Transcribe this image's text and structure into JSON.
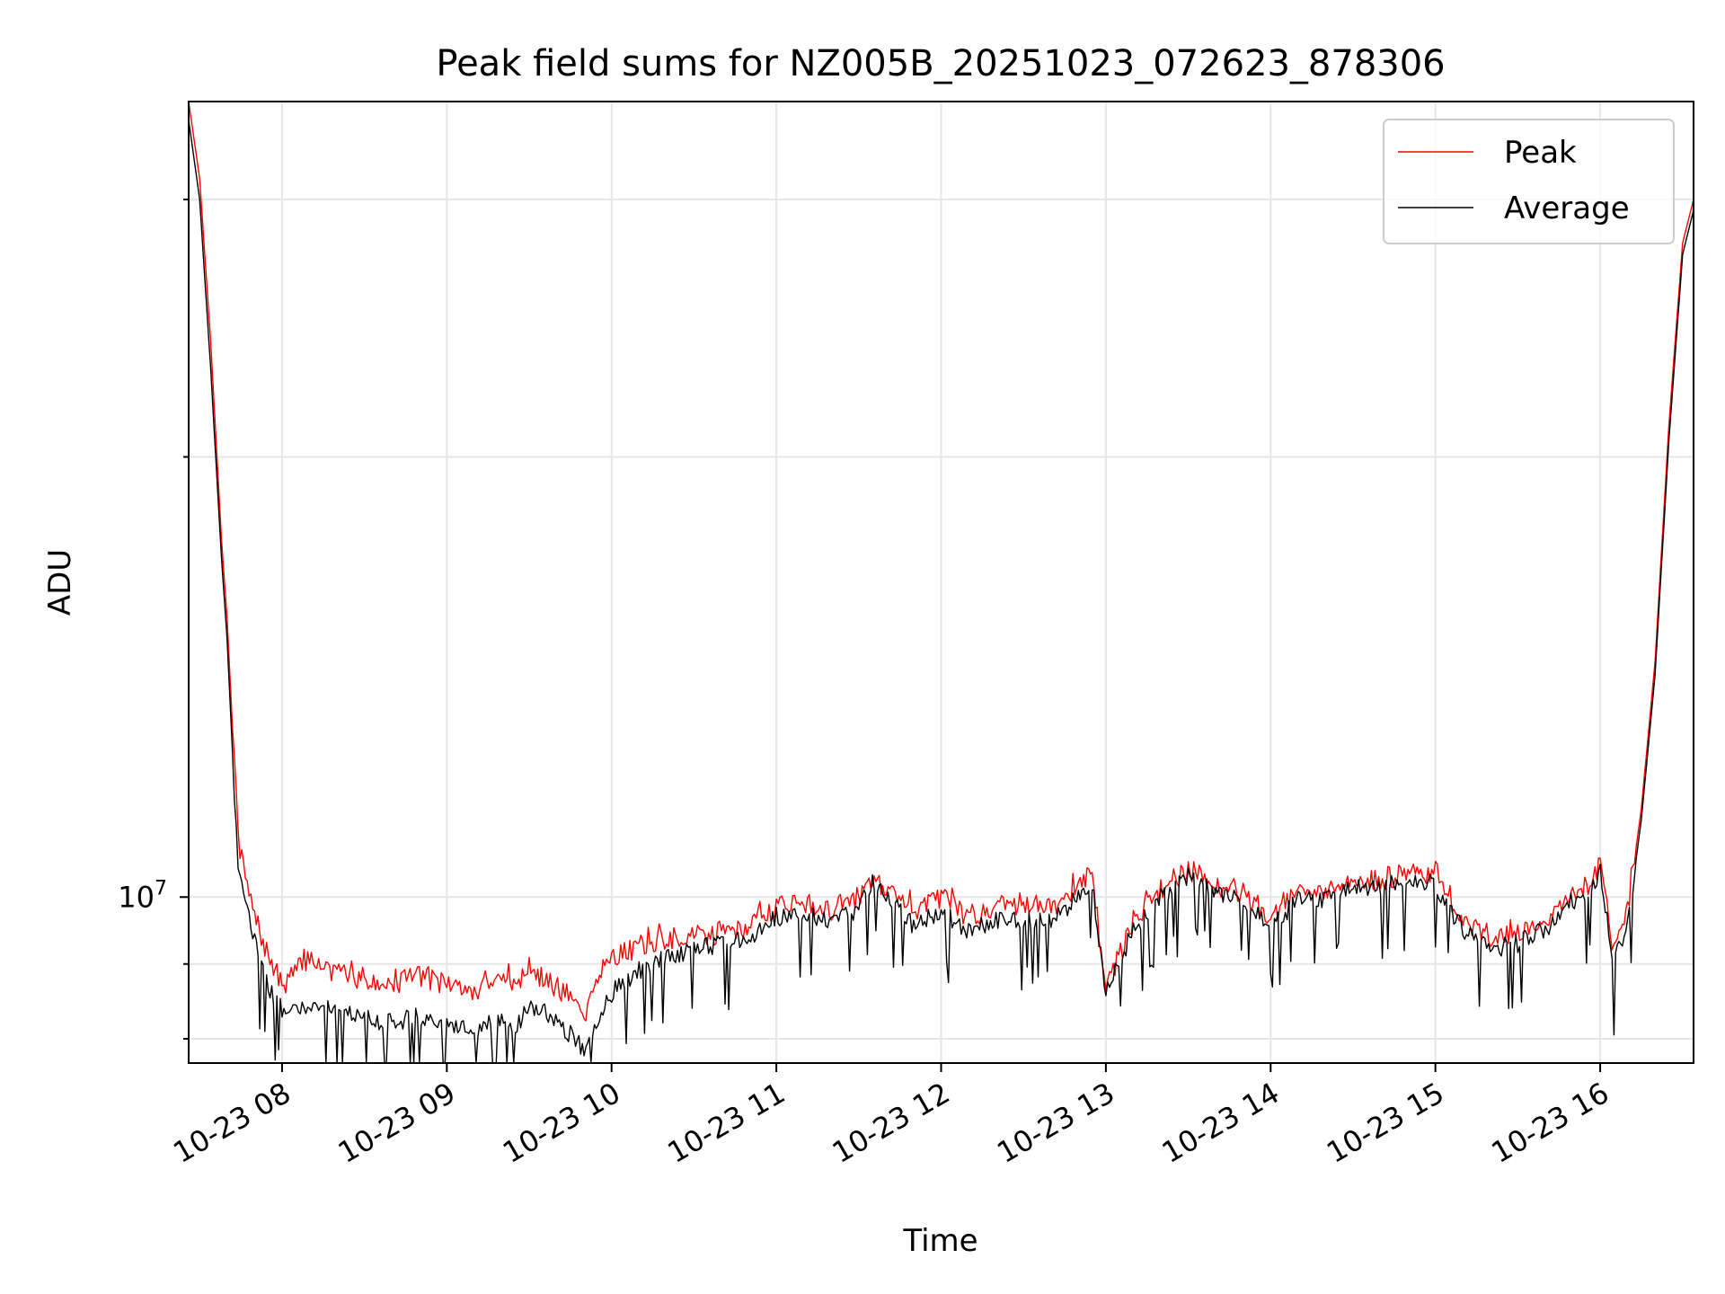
{
  "chart_data": {
    "type": "line",
    "title": "Peak field sums for NZ005B_20251023_072623_878306",
    "xlabel": "Time",
    "ylabel": "ADU",
    "y_scale": "log",
    "grid": true,
    "legend_position": "top-right",
    "xlim": [
      "2025-10-23 07:26",
      "2025-10-23 16:34"
    ],
    "ylim": [
      7700000,
      35000000
    ],
    "x_ticks": [
      "2025-10-23 08:00",
      "2025-10-23 09:00",
      "2025-10-23 10:00",
      "2025-10-23 11:00",
      "2025-10-23 12:00",
      "2025-10-23 13:00",
      "2025-10-23 14:00",
      "2025-10-23 15:00",
      "2025-10-23 16:00"
    ],
    "x_tick_labels": [
      "10-23 08",
      "10-23 09",
      "10-23 10",
      "10-23 11",
      "10-23 12",
      "10-23 13",
      "10-23 14",
      "10-23 15",
      "10-23 16"
    ],
    "y_tick_labels": [
      {
        "value": 10000000,
        "base": "10",
        "exp": "7"
      }
    ],
    "x": [
      "2025-10-23 07:26",
      "2025-10-23 07:30",
      "2025-10-23 07:34",
      "2025-10-23 07:38",
      "2025-10-23 07:40",
      "2025-10-23 07:42",
      "2025-10-23 07:44",
      "2025-10-23 07:46",
      "2025-10-23 07:50",
      "2025-10-23 07:55",
      "2025-10-23 08:00",
      "2025-10-23 08:10",
      "2025-10-23 08:20",
      "2025-10-23 08:30",
      "2025-10-23 08:40",
      "2025-10-23 08:50",
      "2025-10-23 09:00",
      "2025-10-23 09:10",
      "2025-10-23 09:20",
      "2025-10-23 09:25",
      "2025-10-23 09:30",
      "2025-10-23 09:35",
      "2025-10-23 09:45",
      "2025-10-23 09:50",
      "2025-10-23 09:55",
      "2025-10-23 10:00",
      "2025-10-23 10:10",
      "2025-10-23 10:20",
      "2025-10-23 10:30",
      "2025-10-23 10:40",
      "2025-10-23 10:50",
      "2025-10-23 11:00",
      "2025-10-23 11:10",
      "2025-10-23 11:20",
      "2025-10-23 11:30",
      "2025-10-23 11:35",
      "2025-10-23 11:40",
      "2025-10-23 11:50",
      "2025-10-23 12:00",
      "2025-10-23 12:10",
      "2025-10-23 12:20",
      "2025-10-23 12:30",
      "2025-10-23 12:40",
      "2025-10-23 12:50",
      "2025-10-23 12:55",
      "2025-10-23 13:00",
      "2025-10-23 13:10",
      "2025-10-23 13:20",
      "2025-10-23 13:30",
      "2025-10-23 13:40",
      "2025-10-23 13:50",
      "2025-10-23 14:00",
      "2025-10-23 14:10",
      "2025-10-23 14:20",
      "2025-10-23 14:30",
      "2025-10-23 14:40",
      "2025-10-23 14:50",
      "2025-10-23 15:00",
      "2025-10-23 15:10",
      "2025-10-23 15:20",
      "2025-10-23 15:30",
      "2025-10-23 15:40",
      "2025-10-23 15:50",
      "2025-10-23 15:55",
      "2025-10-23 16:00",
      "2025-10-23 16:05",
      "2025-10-23 16:10",
      "2025-10-23 16:15",
      "2025-10-23 16:20",
      "2025-10-23 16:25",
      "2025-10-23 16:30",
      "2025-10-23 16:34"
    ],
    "series": [
      {
        "name": "Peak",
        "color": "#ff0000",
        "values": [
          35000000,
          31000000,
          24000000,
          17500000,
          15500000,
          13000000,
          11000000,
          10400000,
          9700000,
          9100000,
          8700000,
          9100000,
          8850000,
          8800000,
          8700000,
          8850000,
          8700000,
          8600000,
          8900000,
          8650000,
          8950000,
          8800000,
          8550000,
          8300000,
          8850000,
          9100000,
          9250000,
          9350000,
          9400000,
          9450000,
          9550000,
          9850000,
          9900000,
          9800000,
          10000000,
          10300000,
          10150000,
          9800000,
          10000000,
          9700000,
          9850000,
          9900000,
          9850000,
          10200000,
          10350000,
          8650000,
          9650000,
          10100000,
          10450000,
          10200000,
          10050000,
          9700000,
          10050000,
          10050000,
          10250000,
          10250000,
          10400000,
          10300000,
          9650000,
          9400000,
          9450000,
          9650000,
          10050000,
          10100000,
          10550000,
          9200000,
          9800000,
          11500000,
          14500000,
          21000000,
          28000000,
          30000000
        ]
      },
      {
        "name": "Average",
        "color": "#000000",
        "values": [
          34000000,
          30000000,
          23000000,
          17000000,
          15000000,
          12500000,
          10500000,
          10000000,
          9300000,
          8650000,
          8400000,
          8450000,
          8350000,
          8250000,
          8200000,
          8300000,
          8200000,
          8100000,
          8300000,
          8150000,
          8450000,
          8350000,
          8050000,
          7850000,
          8250000,
          8600000,
          8900000,
          9100000,
          9200000,
          9300000,
          9400000,
          9700000,
          9750000,
          9600000,
          9800000,
          10250000,
          10050000,
          9550000,
          9800000,
          9450000,
          9650000,
          9650000,
          9650000,
          10000000,
          10250000,
          8600000,
          9500000,
          10000000,
          10350000,
          10100000,
          9900000,
          9550000,
          9950000,
          9950000,
          10150000,
          10150000,
          10300000,
          10200000,
          9500000,
          9200000,
          9300000,
          9500000,
          9950000,
          10000000,
          10400000,
          9000000,
          9600000,
          11300000,
          14200000,
          20500000,
          27500000,
          29500000
        ]
      }
    ]
  }
}
